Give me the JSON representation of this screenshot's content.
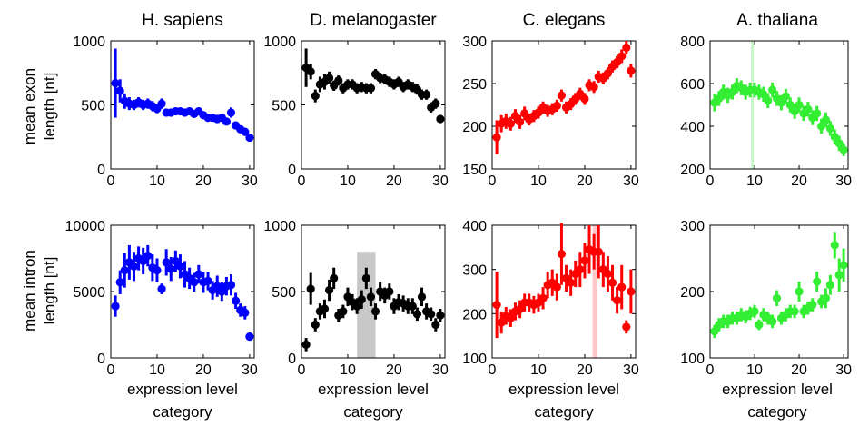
{
  "figure": {
    "xlabel_line1": "expression level",
    "xlabel_line2": "category",
    "row_labels": [
      {
        "line1": "mean exon",
        "line2": "length [nt]"
      },
      {
        "line1": "mean intron",
        "line2": "length [nt]"
      }
    ],
    "columns": [
      "H. sapiens",
      "D. melanogaster",
      "C. elegans",
      "A. thaliana"
    ]
  },
  "chart_data": [
    {
      "type": "scatter",
      "id": "hs-exon",
      "title": "H. sapiens",
      "color": "#0000ff",
      "xlim": [
        0,
        31
      ],
      "ylim": [
        0,
        1000
      ],
      "xticks": [
        0,
        10,
        20,
        30
      ],
      "yticks": [
        0,
        500,
        1000
      ],
      "x": [
        1,
        2,
        3,
        4,
        5,
        6,
        7,
        8,
        9,
        10,
        11,
        12,
        13,
        14,
        15,
        16,
        17,
        18,
        19,
        20,
        21,
        22,
        23,
        24,
        25,
        26,
        27,
        28,
        29,
        30
      ],
      "y": [
        670,
        610,
        530,
        510,
        500,
        520,
        500,
        510,
        490,
        470,
        510,
        440,
        440,
        450,
        450,
        440,
        450,
        430,
        450,
        420,
        400,
        400,
        390,
        400,
        370,
        440,
        340,
        310,
        290,
        245
      ],
      "err": [
        270,
        90,
        60,
        50,
        40,
        40,
        40,
        40,
        40,
        35,
        40,
        30,
        30,
        30,
        30,
        30,
        30,
        30,
        30,
        30,
        30,
        30,
        30,
        30,
        30,
        40,
        30,
        30,
        30,
        25
      ],
      "highlight": null
    },
    {
      "type": "scatter",
      "id": "hs-intron",
      "title": "",
      "color": "#0000ff",
      "xlim": [
        0,
        31
      ],
      "ylim": [
        0,
        10000
      ],
      "xticks": [
        0,
        10,
        20,
        30
      ],
      "yticks": [
        0,
        5000,
        10000
      ],
      "x": [
        1,
        2,
        3,
        4,
        5,
        6,
        7,
        8,
        9,
        10,
        11,
        12,
        13,
        14,
        15,
        16,
        17,
        18,
        19,
        20,
        21,
        22,
        23,
        24,
        25,
        26,
        27,
        28,
        29,
        30
      ],
      "y": [
        3900,
        5700,
        6600,
        7200,
        6900,
        7500,
        7300,
        7700,
        6800,
        6600,
        5200,
        7200,
        6700,
        7300,
        6900,
        6300,
        6000,
        5700,
        6300,
        5700,
        5800,
        5100,
        5400,
        5000,
        5400,
        5500,
        4300,
        3600,
        3400,
        1600
      ],
      "err": [
        800,
        900,
        1300,
        1300,
        1100,
        900,
        1000,
        800,
        1000,
        900,
        400,
        1000,
        900,
        800,
        900,
        1000,
        800,
        700,
        700,
        800,
        700,
        700,
        800,
        700,
        700,
        800,
        600,
        500,
        500,
        300
      ],
      "highlight": null
    },
    {
      "type": "scatter",
      "id": "dm-exon",
      "title": "D. melanogaster",
      "color": "#000000",
      "xlim": [
        0,
        31
      ],
      "ylim": [
        0,
        1000
      ],
      "xticks": [
        0,
        10,
        20,
        30
      ],
      "yticks": [
        0,
        500,
        1000
      ],
      "x": [
        1,
        2,
        3,
        4,
        5,
        6,
        7,
        8,
        9,
        10,
        11,
        12,
        13,
        14,
        15,
        16,
        17,
        18,
        19,
        20,
        21,
        22,
        23,
        24,
        25,
        26,
        27,
        28,
        29,
        30
      ],
      "y": [
        790,
        760,
        570,
        660,
        680,
        710,
        650,
        690,
        630,
        660,
        660,
        630,
        640,
        630,
        630,
        740,
        710,
        700,
        680,
        660,
        680,
        640,
        660,
        640,
        620,
        580,
        580,
        480,
        510,
        390
      ],
      "err": [
        150,
        60,
        50,
        60,
        60,
        50,
        40,
        40,
        40,
        40,
        40,
        40,
        40,
        40,
        40,
        40,
        40,
        40,
        40,
        40,
        40,
        40,
        40,
        40,
        40,
        40,
        40,
        40,
        40,
        30
      ],
      "highlight": null
    },
    {
      "type": "scatter",
      "id": "dm-intron",
      "title": "",
      "color": "#000000",
      "xlim": [
        0,
        31
      ],
      "ylim": [
        0,
        1000
      ],
      "xticks": [
        0,
        10,
        20,
        30
      ],
      "yticks": [
        0,
        500,
        1000
      ],
      "x": [
        1,
        2,
        3,
        4,
        5,
        6,
        7,
        8,
        9,
        10,
        11,
        12,
        13,
        14,
        15,
        16,
        17,
        18,
        19,
        20,
        21,
        22,
        23,
        24,
        25,
        26,
        27,
        28,
        29,
        30
      ],
      "y": [
        100,
        520,
        250,
        350,
        370,
        510,
        600,
        320,
        350,
        460,
        420,
        390,
        440,
        600,
        460,
        350,
        500,
        470,
        500,
        390,
        420,
        410,
        390,
        390,
        330,
        460,
        350,
        330,
        250,
        320
      ],
      "err": [
        50,
        120,
        50,
        60,
        70,
        80,
        80,
        50,
        50,
        70,
        60,
        60,
        70,
        80,
        70,
        60,
        70,
        60,
        60,
        60,
        60,
        60,
        60,
        60,
        50,
        70,
        60,
        50,
        50,
        50
      ],
      "highlight": {
        "x0": 12,
        "x1": 16,
        "y0": 0,
        "y1": 800,
        "color": "#c8c8c8"
      }
    },
    {
      "type": "scatter",
      "id": "ce-exon",
      "title": "C. elegans",
      "color": "#ff0000",
      "xlim": [
        0,
        31
      ],
      "ylim": [
        150,
        300
      ],
      "xticks": [
        0,
        10,
        20,
        30
      ],
      "yticks": [
        150,
        200,
        250,
        300
      ],
      "x": [
        1,
        2,
        3,
        4,
        5,
        6,
        7,
        8,
        9,
        10,
        11,
        12,
        13,
        14,
        15,
        16,
        17,
        18,
        19,
        20,
        21,
        22,
        23,
        24,
        25,
        26,
        27,
        28,
        29,
        30
      ],
      "y": [
        187,
        203,
        206,
        203,
        212,
        205,
        215,
        208,
        212,
        216,
        222,
        218,
        220,
        224,
        236,
        222,
        226,
        232,
        238,
        232,
        248,
        246,
        258,
        256,
        262,
        270,
        275,
        282,
        292,
        265
      ],
      "err": [
        20,
        10,
        9,
        8,
        8,
        8,
        8,
        7,
        7,
        7,
        7,
        7,
        7,
        7,
        7,
        7,
        7,
        7,
        7,
        7,
        7,
        7,
        7,
        7,
        7,
        7,
        7,
        8,
        8,
        8
      ],
      "highlight": null
    },
    {
      "type": "scatter",
      "id": "ce-intron",
      "title": "",
      "color": "#ff0000",
      "xlim": [
        0,
        31
      ],
      "ylim": [
        100,
        400
      ],
      "xticks": [
        0,
        10,
        20,
        30
      ],
      "yticks": [
        100,
        200,
        300,
        400
      ],
      "x": [
        1,
        2,
        3,
        4,
        5,
        6,
        7,
        8,
        9,
        10,
        11,
        12,
        13,
        14,
        15,
        16,
        17,
        18,
        19,
        20,
        21,
        22,
        23,
        24,
        25,
        26,
        27,
        28,
        29,
        30
      ],
      "y": [
        220,
        180,
        195,
        190,
        205,
        210,
        225,
        225,
        220,
        225,
        235,
        265,
        270,
        260,
        335,
        280,
        270,
        290,
        300,
        320,
        345,
        340,
        340,
        300,
        290,
        270,
        230,
        260,
        170,
        250
      ],
      "err": [
        75,
        25,
        20,
        20,
        20,
        20,
        20,
        20,
        20,
        20,
        25,
        30,
        30,
        30,
        70,
        30,
        30,
        30,
        40,
        40,
        55,
        40,
        60,
        40,
        40,
        40,
        30,
        50,
        15,
        50
      ],
      "highlight": {
        "x0": 21.7,
        "x1": 22.7,
        "y0": 100,
        "y1": 400,
        "color": "#ffc8c8"
      }
    },
    {
      "type": "scatter",
      "id": "at-exon",
      "title": "A. thaliana",
      "color": "#33ee33",
      "xlim": [
        0,
        31
      ],
      "ylim": [
        200,
        800
      ],
      "xticks": [
        0,
        10,
        20,
        30
      ],
      "yticks": [
        200,
        400,
        600,
        800
      ],
      "x": [
        1,
        2,
        3,
        4,
        5,
        6,
        7,
        8,
        9,
        10,
        11,
        12,
        13,
        14,
        15,
        16,
        17,
        18,
        19,
        20,
        21,
        22,
        23,
        24,
        25,
        26,
        27,
        28,
        29,
        30
      ],
      "y": [
        510,
        530,
        560,
        545,
        560,
        590,
        580,
        560,
        570,
        570,
        560,
        550,
        520,
        570,
        530,
        510,
        540,
        500,
        470,
        500,
        460,
        480,
        440,
        460,
        400,
        430,
        390,
        350,
        320,
        290
      ],
      "err": [
        40,
        35,
        35,
        35,
        35,
        35,
        35,
        35,
        35,
        35,
        35,
        35,
        35,
        35,
        35,
        35,
        35,
        35,
        35,
        35,
        35,
        35,
        35,
        35,
        35,
        35,
        35,
        35,
        35,
        30
      ],
      "highlight": {
        "x0": 9.2,
        "x1": 9.8,
        "y0": 200,
        "y1": 800,
        "color": "#c8f5c8"
      }
    },
    {
      "type": "scatter",
      "id": "at-intron",
      "title": "",
      "color": "#33ee33",
      "xlim": [
        0,
        31
      ],
      "ylim": [
        100,
        300
      ],
      "xticks": [
        0,
        10,
        20,
        30
      ],
      "yticks": [
        100,
        200,
        300
      ],
      "x": [
        1,
        2,
        3,
        4,
        5,
        6,
        7,
        8,
        9,
        10,
        11,
        12,
        13,
        14,
        15,
        16,
        17,
        18,
        19,
        20,
        21,
        22,
        23,
        24,
        25,
        26,
        27,
        28,
        29,
        30
      ],
      "y": [
        140,
        150,
        155,
        155,
        160,
        160,
        165,
        162,
        167,
        170,
        150,
        165,
        160,
        155,
        190,
        160,
        165,
        170,
        170,
        200,
        170,
        175,
        180,
        215,
        185,
        190,
        210,
        270,
        225,
        240
      ],
      "err": [
        10,
        10,
        10,
        10,
        10,
        10,
        10,
        10,
        10,
        10,
        8,
        10,
        10,
        10,
        12,
        10,
        10,
        10,
        10,
        15,
        10,
        10,
        10,
        15,
        10,
        15,
        15,
        20,
        25,
        25
      ],
      "highlight": null
    }
  ]
}
